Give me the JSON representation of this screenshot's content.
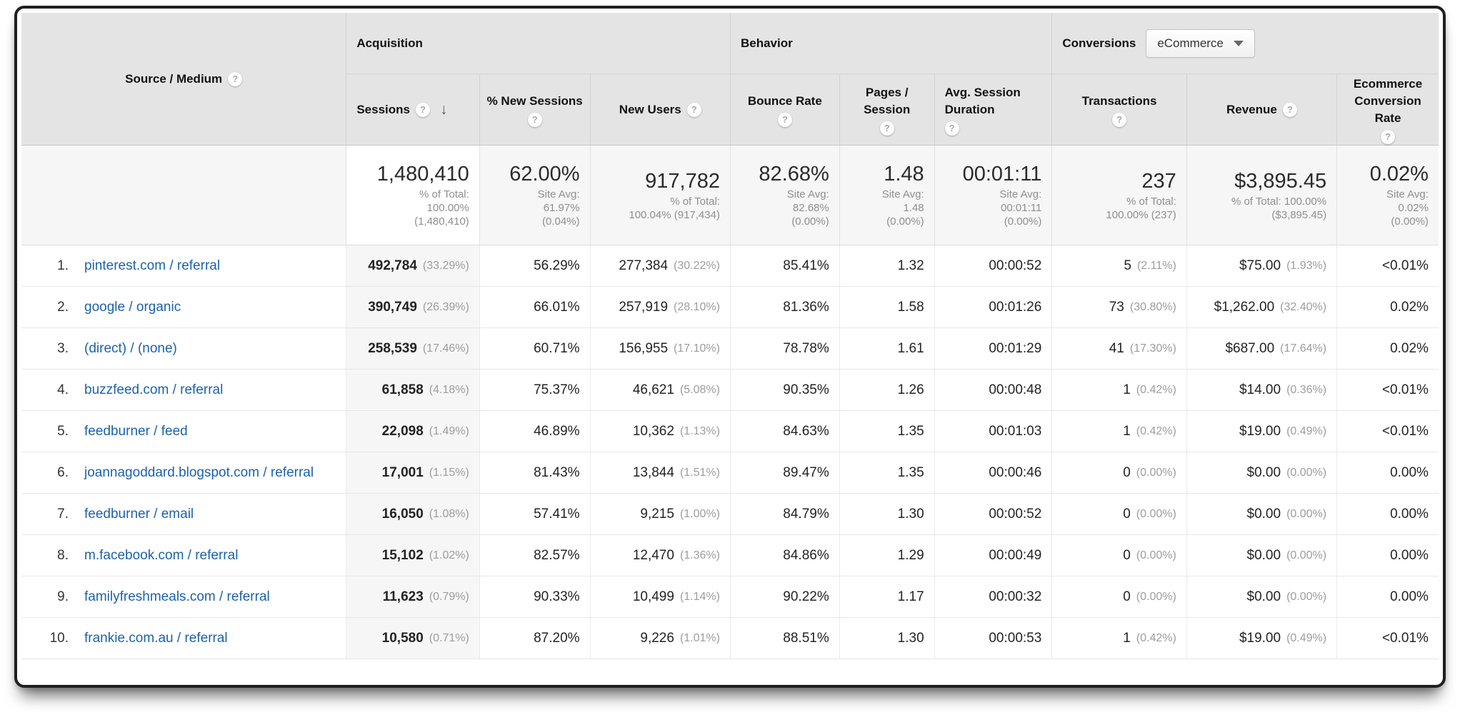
{
  "colors": {
    "link": "#1c62ac",
    "header_bg": "#e4e4e4",
    "sorted_column_bg": "#f6f6f6"
  },
  "table": {
    "source_header": "Source / Medium",
    "groups": {
      "acquisition": "Acquisition",
      "behavior": "Behavior",
      "conversions": "Conversions",
      "conversions_selector": "eCommerce"
    },
    "columns": {
      "sessions": "Sessions",
      "new_sessions": "% New Sessions",
      "new_users": "New Users",
      "bounce": "Bounce Rate",
      "pages": "Pages / Session",
      "duration": "Avg. Session Duration",
      "transactions": "Transactions",
      "revenue": "Revenue",
      "ecr": "Ecommerce Conversion Rate",
      "help_glyph": "?",
      "sort_glyph": "↓"
    },
    "summary": {
      "sessions": {
        "value": "1,480,410",
        "sub": [
          "% of Total:",
          "100.00%",
          "(1,480,410)"
        ]
      },
      "new_sessions": {
        "value": "62.00%",
        "sub": [
          "Site Avg:",
          "61.97%",
          "(0.04%)"
        ]
      },
      "new_users": {
        "value": "917,782",
        "sub": [
          "% of Total:",
          "100.04% (917,434)"
        ]
      },
      "bounce": {
        "value": "82.68%",
        "sub": [
          "Site Avg:",
          "82.68%",
          "(0.00%)"
        ]
      },
      "pages": {
        "value": "1.48",
        "sub": [
          "Site Avg:",
          "1.48",
          "(0.00%)"
        ]
      },
      "duration": {
        "value": "00:01:11",
        "sub": [
          "Site Avg:",
          "00:01:11",
          "(0.00%)"
        ]
      },
      "transactions": {
        "value": "237",
        "sub": [
          "% of Total:",
          "100.00% (237)"
        ]
      },
      "revenue": {
        "value": "$3,895.45",
        "sub": [
          "% of Total: 100.00%",
          "($3,895.45)"
        ]
      },
      "ecr": {
        "value": "0.02%",
        "sub": [
          "Site Avg:",
          "0.02%",
          "(0.00%)"
        ]
      }
    },
    "rows": [
      {
        "rank": "1.",
        "source": "pinterest.com / referral",
        "sessions": "492,784",
        "sessions_pct": "(33.29%)",
        "new_sessions": "56.29%",
        "new_users": "277,384",
        "new_users_pct": "(30.22%)",
        "bounce": "85.41%",
        "pages": "1.32",
        "duration": "00:00:52",
        "transactions": "5",
        "transactions_pct": "(2.11%)",
        "revenue": "$75.00",
        "revenue_pct": "(1.93%)",
        "ecr": "<0.01%"
      },
      {
        "rank": "2.",
        "source": "google / organic",
        "sessions": "390,749",
        "sessions_pct": "(26.39%)",
        "new_sessions": "66.01%",
        "new_users": "257,919",
        "new_users_pct": "(28.10%)",
        "bounce": "81.36%",
        "pages": "1.58",
        "duration": "00:01:26",
        "transactions": "73",
        "transactions_pct": "(30.80%)",
        "revenue": "$1,262.00",
        "revenue_pct": "(32.40%)",
        "ecr": "0.02%"
      },
      {
        "rank": "3.",
        "source": "(direct) / (none)",
        "sessions": "258,539",
        "sessions_pct": "(17.46%)",
        "new_sessions": "60.71%",
        "new_users": "156,955",
        "new_users_pct": "(17.10%)",
        "bounce": "78.78%",
        "pages": "1.61",
        "duration": "00:01:29",
        "transactions": "41",
        "transactions_pct": "(17.30%)",
        "revenue": "$687.00",
        "revenue_pct": "(17.64%)",
        "ecr": "0.02%"
      },
      {
        "rank": "4.",
        "source": "buzzfeed.com / referral",
        "sessions": "61,858",
        "sessions_pct": "(4.18%)",
        "new_sessions": "75.37%",
        "new_users": "46,621",
        "new_users_pct": "(5.08%)",
        "bounce": "90.35%",
        "pages": "1.26",
        "duration": "00:00:48",
        "transactions": "1",
        "transactions_pct": "(0.42%)",
        "revenue": "$14.00",
        "revenue_pct": "(0.36%)",
        "ecr": "<0.01%"
      },
      {
        "rank": "5.",
        "source": "feedburner / feed",
        "sessions": "22,098",
        "sessions_pct": "(1.49%)",
        "new_sessions": "46.89%",
        "new_users": "10,362",
        "new_users_pct": "(1.13%)",
        "bounce": "84.63%",
        "pages": "1.35",
        "duration": "00:01:03",
        "transactions": "1",
        "transactions_pct": "(0.42%)",
        "revenue": "$19.00",
        "revenue_pct": "(0.49%)",
        "ecr": "<0.01%"
      },
      {
        "rank": "6.",
        "source": "joannagoddard.blogspot.com / referral",
        "sessions": "17,001",
        "sessions_pct": "(1.15%)",
        "new_sessions": "81.43%",
        "new_users": "13,844",
        "new_users_pct": "(1.51%)",
        "bounce": "89.47%",
        "pages": "1.35",
        "duration": "00:00:46",
        "transactions": "0",
        "transactions_pct": "(0.00%)",
        "revenue": "$0.00",
        "revenue_pct": "(0.00%)",
        "ecr": "0.00%"
      },
      {
        "rank": "7.",
        "source": "feedburner / email",
        "sessions": "16,050",
        "sessions_pct": "(1.08%)",
        "new_sessions": "57.41%",
        "new_users": "9,215",
        "new_users_pct": "(1.00%)",
        "bounce": "84.79%",
        "pages": "1.30",
        "duration": "00:00:52",
        "transactions": "0",
        "transactions_pct": "(0.00%)",
        "revenue": "$0.00",
        "revenue_pct": "(0.00%)",
        "ecr": "0.00%"
      },
      {
        "rank": "8.",
        "source": "m.facebook.com / referral",
        "sessions": "15,102",
        "sessions_pct": "(1.02%)",
        "new_sessions": "82.57%",
        "new_users": "12,470",
        "new_users_pct": "(1.36%)",
        "bounce": "84.86%",
        "pages": "1.29",
        "duration": "00:00:49",
        "transactions": "0",
        "transactions_pct": "(0.00%)",
        "revenue": "$0.00",
        "revenue_pct": "(0.00%)",
        "ecr": "0.00%"
      },
      {
        "rank": "9.",
        "source": "familyfreshmeals.com / referral",
        "sessions": "11,623",
        "sessions_pct": "(0.79%)",
        "new_sessions": "90.33%",
        "new_users": "10,499",
        "new_users_pct": "(1.14%)",
        "bounce": "90.22%",
        "pages": "1.17",
        "duration": "00:00:32",
        "transactions": "0",
        "transactions_pct": "(0.00%)",
        "revenue": "$0.00",
        "revenue_pct": "(0.00%)",
        "ecr": "0.00%"
      },
      {
        "rank": "10.",
        "source": "frankie.com.au / referral",
        "sessions": "10,580",
        "sessions_pct": "(0.71%)",
        "new_sessions": "87.20%",
        "new_users": "9,226",
        "new_users_pct": "(1.01%)",
        "bounce": "88.51%",
        "pages": "1.30",
        "duration": "00:00:53",
        "transactions": "1",
        "transactions_pct": "(0.42%)",
        "revenue": "$19.00",
        "revenue_pct": "(0.49%)",
        "ecr": "<0.01%"
      }
    ]
  }
}
